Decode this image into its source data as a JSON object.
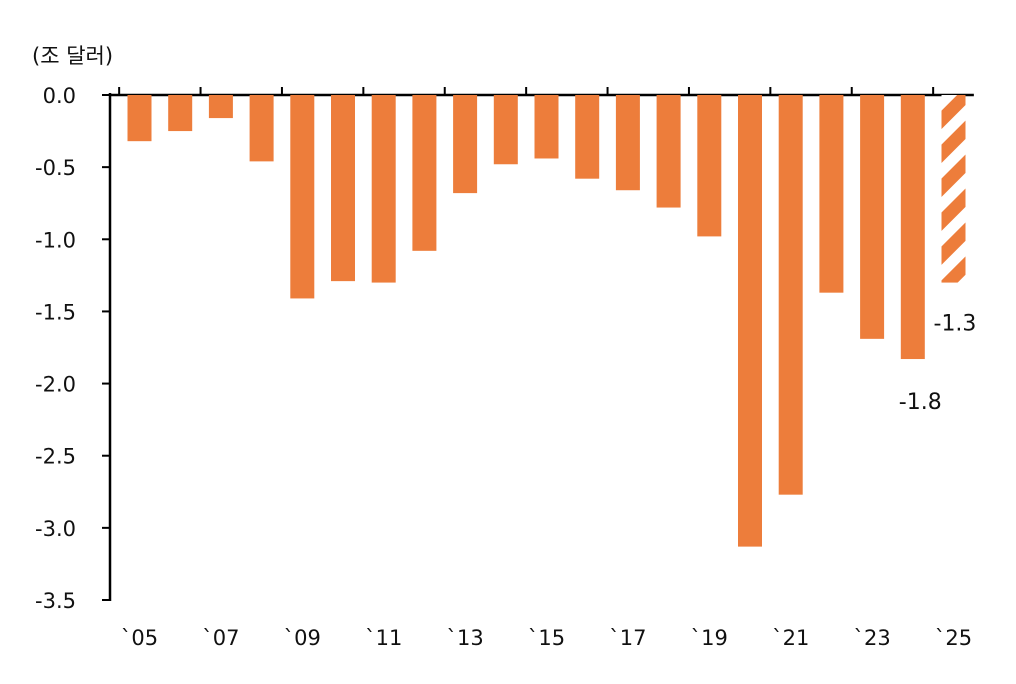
{
  "chart_data": {
    "type": "bar",
    "unit_label": "(조 달러)",
    "x": [
      2005,
      2006,
      2007,
      2008,
      2009,
      2010,
      2011,
      2012,
      2013,
      2014,
      2015,
      2016,
      2017,
      2018,
      2019,
      2020,
      2021,
      2022,
      2023,
      2024,
      2025
    ],
    "values": [
      -0.32,
      -0.25,
      -0.16,
      -0.46,
      -1.41,
      -1.29,
      -1.3,
      -1.08,
      -0.68,
      -0.48,
      -0.44,
      -0.58,
      -0.66,
      -0.78,
      -0.98,
      -3.13,
      -2.77,
      -1.37,
      -1.69,
      -1.83,
      -1.3
    ],
    "projected_index": 20,
    "xtick_labels": [
      "`05",
      "`07",
      "`09",
      "`11",
      "`13",
      "`15",
      "`17",
      "`19",
      "`21",
      "`23",
      "`25"
    ],
    "xtick_years": [
      2005,
      2007,
      2009,
      2011,
      2013,
      2015,
      2017,
      2019,
      2021,
      2023,
      2025
    ],
    "ytick_labels": [
      "0.0",
      "-0.5",
      "-1.0",
      "-1.5",
      "-2.0",
      "-2.5",
      "-3.0",
      "-3.5"
    ],
    "ytick_values": [
      0,
      -0.5,
      -1.0,
      -1.5,
      -2.0,
      -2.5,
      -3.0,
      -3.5
    ],
    "ylim": [
      -3.5,
      0
    ],
    "annotations": [
      {
        "year": 2024,
        "text": "-1.8"
      },
      {
        "year": 2025,
        "text": "-1.3"
      }
    ],
    "bar_color": "#ed7d3b",
    "grid": false,
    "legend": "none"
  }
}
